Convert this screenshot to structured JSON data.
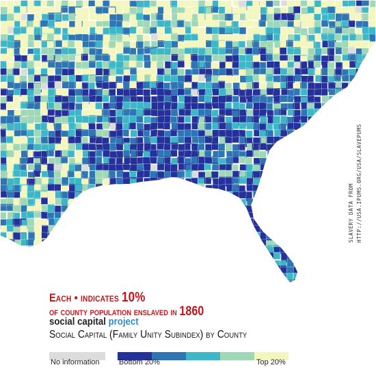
{
  "colors": {
    "no_information": "#dcdcdc",
    "q1": "#25319b",
    "q2": "#2d75b3",
    "q3": "#3db7c7",
    "q4": "#9fd8b7",
    "q5": "#f3f6bd",
    "caption": "#c0171c",
    "brand_accent": "#2e8fc7"
  },
  "credit": {
    "line1": "slavery data from",
    "line2": "http://usa.ipums.org/usa/slavepums"
  },
  "caption": {
    "line1_prefix": "Each",
    "bullet": "•",
    "line1_middle": "indicates",
    "line1_value": "10%",
    "line2_text": "of county population enslaved in",
    "line2_year": "1860"
  },
  "brand": {
    "part1": "social capital",
    "part2": "project"
  },
  "subtitle": "Social Capital (Family Unity Subindex) by County",
  "legend": {
    "no_info_label": "No information",
    "bottom_label": "Bottom 20%",
    "top_label": "Top 20%"
  }
}
